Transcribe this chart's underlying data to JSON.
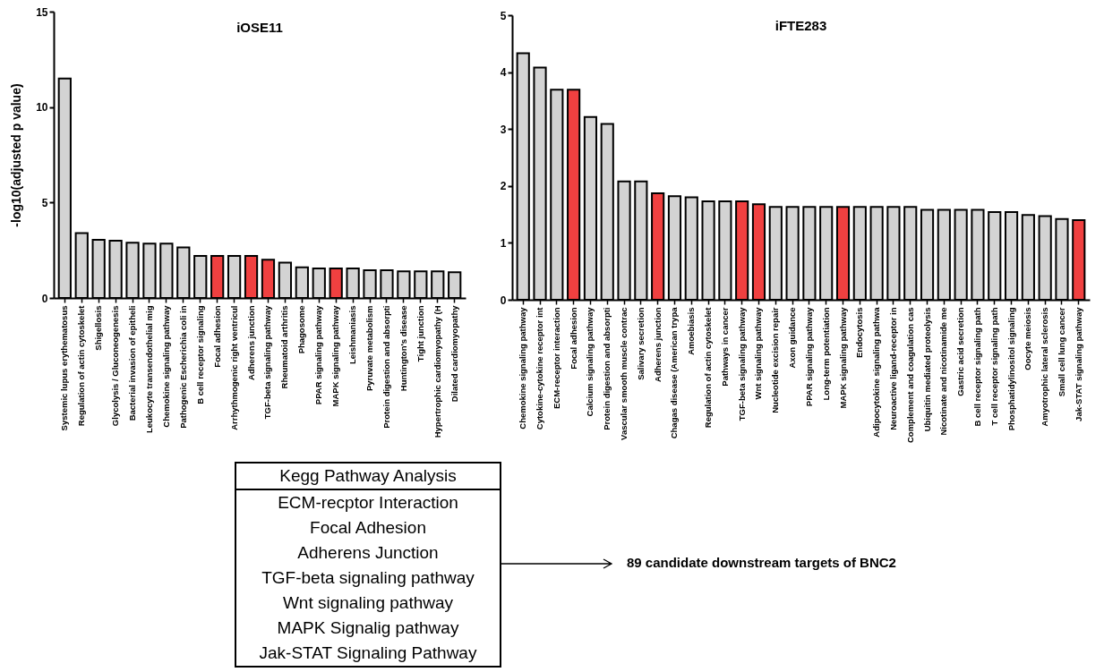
{
  "chart_data": [
    {
      "type": "bar",
      "title": "iOSE11",
      "ylabel": "-log10(adjusted p value)",
      "categories": [
        "Systemic lupus erythematosus",
        "Regulation of actin cytoskelet",
        "Shigellosis",
        "Glycolysis / Gluconeogenesis",
        "Bacterial invasion of epitheli",
        "Leukocyte transendothelial mig",
        "Chemokine signaling pathway",
        "Pathogenic Escherichia coli in",
        "B cell receptor signaling",
        "Focal adhesion",
        "Arrhythmogenic right ventricul",
        "Adherens junction",
        "TGF-beta signaling pathway",
        "Rheumatoid arthritis",
        "Phagosome",
        "PPAR signaling pathway",
        "MAPK signaling pathway",
        "Leishmaniasis",
        "Pyruvate metabolism",
        "Protein digestion and absorpti",
        "Huntington's disease",
        "Tight junction",
        "Hypertrophic cardiomyopathy (H",
        "Dilated cardiomyopathy"
      ],
      "values": [
        11.5,
        3.4,
        3.05,
        3.0,
        2.9,
        2.85,
        2.85,
        2.65,
        2.2,
        2.2,
        2.2,
        2.2,
        2.0,
        1.85,
        1.6,
        1.55,
        1.55,
        1.55,
        1.45,
        1.45,
        1.4,
        1.4,
        1.4,
        1.35
      ],
      "colors": [
        "#d3d3d3",
        "#d3d3d3",
        "#d3d3d3",
        "#d3d3d3",
        "#d3d3d3",
        "#d3d3d3",
        "#d3d3d3",
        "#d3d3d3",
        "#d3d3d3",
        "#f04040",
        "#d3d3d3",
        "#f04040",
        "#f04040",
        "#d3d3d3",
        "#d3d3d3",
        "#d3d3d3",
        "#f04040",
        "#d3d3d3",
        "#d3d3d3",
        "#d3d3d3",
        "#d3d3d3",
        "#d3d3d3",
        "#d3d3d3",
        "#d3d3d3"
      ],
      "ylim": [
        0,
        15
      ],
      "yticks": [
        0,
        5,
        10,
        15
      ]
    },
    {
      "type": "bar",
      "title": "iFTE283",
      "categories": [
        "Chemokine signaling pathway",
        "Cytokine-cytokine receptor int",
        "ECM-receptor interaction",
        "Focal adhesion",
        "Calcium signaling pathway",
        "Protein digestion and absorpti",
        "Vascular smooth muscle contrac",
        "Salivary secretion",
        "Adherens junction",
        "Chagas disease (American trypa",
        "Amoebiasis",
        "Regulation of actin cytoskelet",
        "Pathways in cancer",
        "TGF-beta signaling pathway",
        "Wnt signaling pathway",
        "Nucleotide excision repair",
        "Axon guidance",
        "PPAR signaling pathway",
        "Long-term potentiation",
        "MAPK signaling pathway",
        "Endocytosis",
        "Adipocytokine signaling pathwa",
        "Neuroactive ligand-receptor in",
        "Complement and coagulation cas",
        "Ubiquitin mediated proteolysis",
        "Nicotinate and nicotinamide me",
        "Gastric acid secretion",
        "B cell receptor signaling path",
        "T cell receptor signaling path",
        "Phosphatidylinositol signaling",
        "Oocyte meiosis",
        "Amyotrophic lateral sclerosis",
        "Small cell lung cancer",
        "Jak-STAT signaling pathway"
      ],
      "values": [
        4.33,
        4.08,
        3.69,
        3.69,
        3.21,
        3.09,
        2.08,
        2.08,
        1.87,
        1.82,
        1.8,
        1.73,
        1.73,
        1.73,
        1.68,
        1.63,
        1.63,
        1.63,
        1.63,
        1.63,
        1.63,
        1.63,
        1.63,
        1.63,
        1.58,
        1.58,
        1.58,
        1.58,
        1.54,
        1.54,
        1.49,
        1.47,
        1.42,
        1.4
      ],
      "colors": [
        "#d3d3d3",
        "#d3d3d3",
        "#d3d3d3",
        "#f04040",
        "#d3d3d3",
        "#d3d3d3",
        "#d3d3d3",
        "#d3d3d3",
        "#f04040",
        "#d3d3d3",
        "#d3d3d3",
        "#d3d3d3",
        "#d3d3d3",
        "#f04040",
        "#f04040",
        "#d3d3d3",
        "#d3d3d3",
        "#d3d3d3",
        "#d3d3d3",
        "#f04040",
        "#d3d3d3",
        "#d3d3d3",
        "#d3d3d3",
        "#d3d3d3",
        "#d3d3d3",
        "#d3d3d3",
        "#d3d3d3",
        "#d3d3d3",
        "#d3d3d3",
        "#d3d3d3",
        "#d3d3d3",
        "#d3d3d3",
        "#d3d3d3",
        "#f04040"
      ],
      "ylim": [
        0,
        5
      ],
      "yticks": [
        0,
        1,
        2,
        3,
        4,
        5
      ]
    },
    {
      "type": "other",
      "title": "Kegg Pathway Analysis",
      "annotations": [
        "ECM-recptor Interaction",
        "Focal Adhesion",
        "Adherens Junction",
        "TGF-beta signaling pathway",
        "Wnt signaling pathway",
        "MAPK Signalig pathway",
        "Jak-STAT Signaling Pathway",
        "89 candidate downstream targets of BNC2"
      ]
    }
  ]
}
